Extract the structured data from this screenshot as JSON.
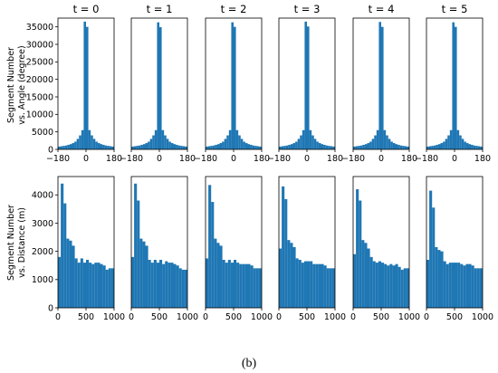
{
  "figure": {
    "caption": "(b)",
    "bar_color": "#1f77b4",
    "column_titles": [
      "t = 0",
      "t = 1",
      "t = 2",
      "t = 3",
      "t = 4",
      "t = 5"
    ],
    "row_labels": [
      [
        "Segment Number",
        "vs. Angle (degree)"
      ],
      [
        "Segment Number",
        "vs. Distance (m)"
      ]
    ]
  },
  "chart_data": [
    {
      "type": "bar",
      "title": "Segment Number vs. Angle (degree)",
      "panels": [
        "t = 0",
        "t = 1",
        "t = 2",
        "t = 3",
        "t = 4",
        "t = 5"
      ],
      "bin_edges": [
        -180,
        -165,
        -150,
        -135,
        -120,
        -105,
        -90,
        -75,
        -60,
        -45,
        -30,
        -15,
        0,
        15,
        30,
        45,
        60,
        75,
        90,
        105,
        120,
        135,
        150,
        165,
        180
      ],
      "xlim": [
        -180,
        180
      ],
      "ylim": [
        0,
        37500
      ],
      "xticks": [
        -180,
        0,
        180
      ],
      "xtick_labels": [
        "−180",
        "0",
        "180"
      ],
      "yticks": [
        0,
        5000,
        10000,
        15000,
        20000,
        25000,
        30000,
        35000
      ],
      "ytick_labels": [
        "0",
        "5000",
        "10000",
        "15000",
        "20000",
        "25000",
        "30000",
        "35000"
      ],
      "series": [
        {
          "name": "t = 0",
          "values": [
            800,
            900,
            1000,
            1100,
            1300,
            1500,
            1800,
            2200,
            3000,
            4000,
            5500,
            36500,
            35000,
            5500,
            4000,
            3000,
            2200,
            1800,
            1500,
            1300,
            1100,
            1000,
            900,
            800
          ]
        },
        {
          "name": "t = 1",
          "values": [
            800,
            900,
            1000,
            1100,
            1300,
            1500,
            1800,
            2200,
            3000,
            4000,
            5500,
            36300,
            34900,
            5500,
            4000,
            3000,
            2200,
            1800,
            1500,
            1300,
            1100,
            1000,
            900,
            800
          ]
        },
        {
          "name": "t = 2",
          "values": [
            800,
            900,
            1000,
            1100,
            1300,
            1500,
            1800,
            2200,
            3000,
            4000,
            5500,
            36300,
            35000,
            5500,
            4000,
            3000,
            2200,
            1800,
            1500,
            1300,
            1100,
            1000,
            900,
            800
          ]
        },
        {
          "name": "t = 3",
          "values": [
            800,
            900,
            1000,
            1100,
            1300,
            1500,
            1800,
            2200,
            3000,
            4000,
            5500,
            36500,
            35100,
            5500,
            4000,
            3000,
            2200,
            1800,
            1500,
            1300,
            1100,
            1000,
            900,
            800
          ]
        },
        {
          "name": "t = 4",
          "values": [
            800,
            900,
            1000,
            1100,
            1300,
            1500,
            1800,
            2200,
            3000,
            4000,
            5500,
            36400,
            35000,
            5500,
            4000,
            3000,
            2200,
            1800,
            1500,
            1300,
            1100,
            1000,
            900,
            800
          ]
        },
        {
          "name": "t = 5",
          "values": [
            800,
            900,
            1000,
            1100,
            1300,
            1500,
            1800,
            2200,
            3000,
            4000,
            5500,
            36300,
            35000,
            5500,
            4000,
            3000,
            2200,
            1800,
            1500,
            1300,
            1100,
            1000,
            900,
            800
          ]
        }
      ]
    },
    {
      "type": "bar",
      "title": "Segment Number vs. Distance (m)",
      "panels": [
        "t = 0",
        "t = 1",
        "t = 2",
        "t = 3",
        "t = 4",
        "t = 5"
      ],
      "bin_edges": [
        0,
        50,
        100,
        150,
        200,
        250,
        300,
        350,
        400,
        450,
        500,
        550,
        600,
        650,
        700,
        750,
        800,
        850,
        900,
        950,
        1000
      ],
      "xlim": [
        0,
        1000
      ],
      "ylim": [
        0,
        4650
      ],
      "xticks": [
        0,
        500,
        1000
      ],
      "xtick_labels": [
        "0",
        "500",
        "1000"
      ],
      "yticks": [
        0,
        1000,
        2000,
        3000,
        4000
      ],
      "ytick_labels": [
        "0",
        "1000",
        "2000",
        "3000",
        "4000"
      ],
      "series": [
        {
          "name": "t = 0",
          "values": [
            1800,
            4400,
            3700,
            2450,
            2380,
            2200,
            1750,
            1600,
            1750,
            1600,
            1700,
            1600,
            1550,
            1600,
            1600,
            1550,
            1500,
            1350,
            1400,
            1400
          ]
        },
        {
          "name": "t = 1",
          "values": [
            1800,
            4400,
            3800,
            2450,
            2350,
            2200,
            1700,
            1600,
            1700,
            1600,
            1700,
            1550,
            1650,
            1600,
            1600,
            1550,
            1500,
            1400,
            1350,
            1350
          ]
        },
        {
          "name": "t = 2",
          "values": [
            1750,
            4350,
            3750,
            2450,
            2300,
            2200,
            1700,
            1600,
            1700,
            1600,
            1700,
            1600,
            1550,
            1550,
            1550,
            1550,
            1500,
            1400,
            1400,
            1400
          ]
        },
        {
          "name": "t = 3",
          "values": [
            2100,
            4300,
            3850,
            2400,
            2300,
            2150,
            1750,
            1700,
            1600,
            1650,
            1650,
            1650,
            1550,
            1550,
            1550,
            1550,
            1500,
            1400,
            1400,
            1400
          ]
        },
        {
          "name": "t = 4",
          "values": [
            1900,
            4200,
            3800,
            2400,
            2300,
            2100,
            1800,
            1650,
            1600,
            1650,
            1600,
            1550,
            1500,
            1550,
            1500,
            1550,
            1450,
            1350,
            1400,
            1400
          ]
        },
        {
          "name": "t = 5",
          "values": [
            1700,
            4150,
            3550,
            2150,
            2050,
            2000,
            1650,
            1550,
            1600,
            1600,
            1600,
            1600,
            1550,
            1500,
            1550,
            1550,
            1500,
            1400,
            1400,
            1400
          ]
        }
      ]
    }
  ]
}
